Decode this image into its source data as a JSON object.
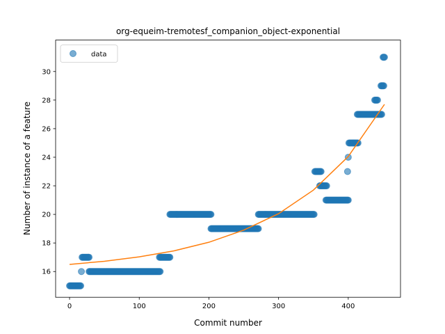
{
  "chart_data": {
    "type": "scatter",
    "title": "org-equeim-tremotesf_companion_object-exponential",
    "xlabel": "Commit number",
    "ylabel": "Number of instance of a feature",
    "xlim": [
      -20,
      475
    ],
    "ylim": [
      14.2,
      32.2
    ],
    "xticks": [
      0,
      100,
      200,
      300,
      400
    ],
    "yticks": [
      16,
      18,
      20,
      22,
      24,
      26,
      28,
      30
    ],
    "grid": false,
    "legend": {
      "position": "top-left",
      "entries": [
        "data"
      ]
    },
    "colors": {
      "data": "#1f77b4",
      "fit": "#ff7f0e"
    },
    "series": [
      {
        "name": "data",
        "kind": "scatter",
        "segments": [
          {
            "x_start": 0,
            "x_end": 16,
            "y": 15
          },
          {
            "x_start": 17,
            "x_end": 17,
            "y": 16
          },
          {
            "x_start": 18,
            "x_end": 28,
            "y": 17
          },
          {
            "x_start": 28,
            "x_end": 130,
            "y": 16
          },
          {
            "x_start": 129,
            "x_end": 144,
            "y": 17
          },
          {
            "x_start": 144,
            "x_end": 203,
            "y": 20
          },
          {
            "x_start": 203,
            "x_end": 271,
            "y": 19
          },
          {
            "x_start": 271,
            "x_end": 351,
            "y": 20
          },
          {
            "x_start": 352,
            "x_end": 361,
            "y": 23
          },
          {
            "x_start": 359,
            "x_end": 369,
            "y": 22
          },
          {
            "x_start": 368,
            "x_end": 400,
            "y": 21
          },
          {
            "x_start": 399,
            "x_end": 399,
            "y": 23
          },
          {
            "x_start": 400,
            "x_end": 400,
            "y": 24
          },
          {
            "x_start": 401,
            "x_end": 414,
            "y": 25
          },
          {
            "x_start": 413,
            "x_end": 448,
            "y": 27
          },
          {
            "x_start": 438,
            "x_end": 442,
            "y": 28
          },
          {
            "x_start": 447,
            "x_end": 451,
            "y": 29
          },
          {
            "x_start": 450,
            "x_end": 452,
            "y": 31
          }
        ]
      },
      {
        "name": "",
        "kind": "line",
        "model": "exponential",
        "x": [
          0,
          50,
          100,
          150,
          200,
          250,
          300,
          350,
          400,
          452
        ],
        "y": [
          16.5,
          16.72,
          17.03,
          17.45,
          18.05,
          18.9,
          20.05,
          21.7,
          24.05,
          27.7
        ]
      }
    ]
  }
}
